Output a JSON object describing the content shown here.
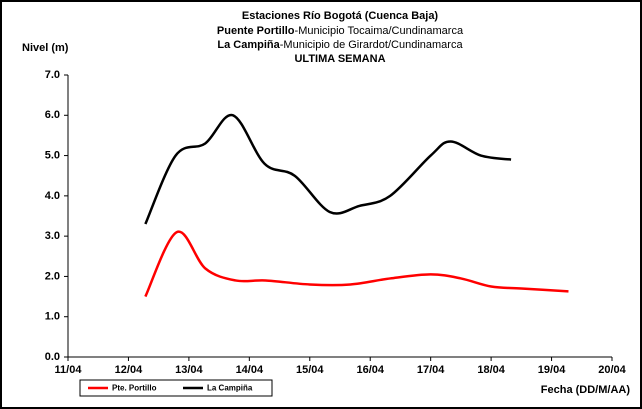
{
  "chart_data": {
    "type": "line",
    "title": "Estaciones Río Bogotá (Cuenca Baja)",
    "subtitle": [
      {
        "bold": "Puente Portillo",
        "text": "-Municipio Tocaima/Cundinamarca"
      },
      {
        "bold": "La Campiña",
        "text": "-Municipio de Girardot/Cundinamarca"
      }
    ],
    "period": "ULTIMA SEMANA",
    "y_label": "Nivel (m)",
    "x_label": "Fecha (DD/M/AA)",
    "xlim": [
      11,
      20
    ],
    "xticks": [
      {
        "value": 11,
        "label": "11/04"
      },
      {
        "value": 12,
        "label": "12/04"
      },
      {
        "value": 13,
        "label": "13/04"
      },
      {
        "value": 14,
        "label": "14/04"
      },
      {
        "value": 15,
        "label": "15/04"
      },
      {
        "value": 16,
        "label": "16/04"
      },
      {
        "value": 17,
        "label": "17/04"
      },
      {
        "value": 18,
        "label": "18/04"
      },
      {
        "value": 19,
        "label": "19/04"
      },
      {
        "value": 20,
        "label": "20/04"
      }
    ],
    "ylim": [
      0,
      7
    ],
    "yticks": [
      {
        "value": 0,
        "label": "0.0"
      },
      {
        "value": 1,
        "label": "1.0"
      },
      {
        "value": 2,
        "label": "2.0"
      },
      {
        "value": 3,
        "label": "3.0"
      },
      {
        "value": 4,
        "label": "4.0"
      },
      {
        "value": 5,
        "label": "5.0"
      },
      {
        "value": 6,
        "label": "6.0"
      },
      {
        "value": 7,
        "label": "7.0"
      }
    ],
    "grid": false,
    "series": [
      {
        "name": "Pte. Portillo",
        "color": "#ff0000",
        "x": [
          12.28,
          12.8,
          13.27,
          13.77,
          14.27,
          15.0,
          15.67,
          16.33,
          17.0,
          17.5,
          18.0,
          18.5,
          19.28
        ],
        "values": [
          1.5,
          3.1,
          2.2,
          1.9,
          1.9,
          1.8,
          1.8,
          1.95,
          2.05,
          1.95,
          1.75,
          1.7,
          1.63
        ]
      },
      {
        "name": "La Campiña",
        "color": "#000000",
        "x": [
          12.28,
          12.78,
          13.27,
          13.73,
          14.25,
          14.75,
          15.33,
          15.82,
          16.33,
          17.0,
          17.33,
          17.83,
          18.33
        ],
        "values": [
          3.3,
          5.0,
          5.3,
          6.0,
          4.8,
          4.5,
          3.6,
          3.75,
          4.0,
          5.0,
          5.35,
          5.0,
          4.9
        ]
      }
    ]
  }
}
